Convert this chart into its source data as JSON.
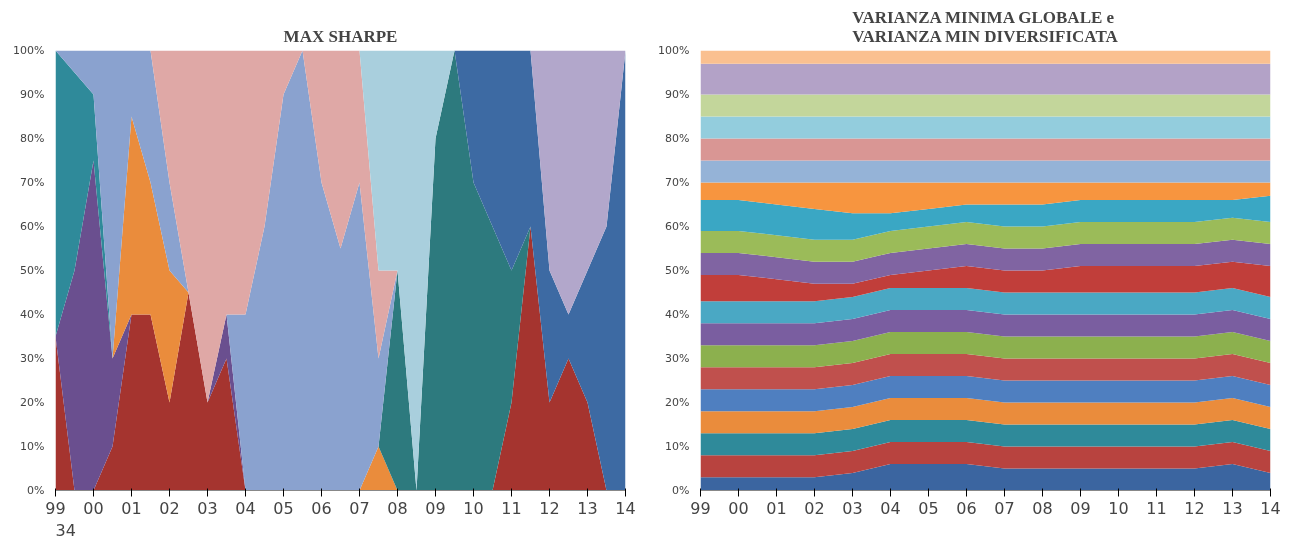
{
  "chart_data": [
    {
      "type": "area",
      "stacked": true,
      "title": "MAX SHARPE",
      "annotations": [
        "34"
      ],
      "x": [
        1999.0,
        1999.5,
        2000.0,
        2000.5,
        2001.0,
        2001.5,
        2002.0,
        2002.5,
        2003.0,
        2003.5,
        2004.0,
        2004.5,
        2005.0,
        2005.5,
        2006.0,
        2006.5,
        2007.0,
        2007.5,
        2008.0,
        2008.5,
        2009.0,
        2009.5,
        2010.0,
        2010.5,
        2011.0,
        2011.5,
        2012.0,
        2012.5,
        2013.0,
        2013.5,
        2014.0
      ],
      "xlim": [
        1999,
        2014
      ],
      "xticks": [
        {
          "value": 1999,
          "label": "99"
        },
        {
          "value": 2000,
          "label": "00"
        },
        {
          "value": 2001,
          "label": "01"
        },
        {
          "value": 2002,
          "label": "02"
        },
        {
          "value": 2003,
          "label": "03"
        },
        {
          "value": 2004,
          "label": "04"
        },
        {
          "value": 2005,
          "label": "05"
        },
        {
          "value": 2006,
          "label": "06"
        },
        {
          "value": 2007,
          "label": "07"
        },
        {
          "value": 2008,
          "label": "08"
        },
        {
          "value": 2009,
          "label": "09"
        },
        {
          "value": 2010,
          "label": "10"
        },
        {
          "value": 2011,
          "label": "11"
        },
        {
          "value": 2012,
          "label": "12"
        },
        {
          "value": 2013,
          "label": "13"
        },
        {
          "value": 2014,
          "label": "14"
        }
      ],
      "ylim": [
        0,
        100
      ],
      "yticks": [
        {
          "value": 0,
          "label": "0%"
        },
        {
          "value": 10,
          "label": "10%"
        },
        {
          "value": 20,
          "label": "20%"
        },
        {
          "value": 30,
          "label": "30%"
        },
        {
          "value": 40,
          "label": "40%"
        },
        {
          "value": 50,
          "label": "50%"
        },
        {
          "value": 60,
          "label": "60%"
        },
        {
          "value": 70,
          "label": "70%"
        },
        {
          "value": 80,
          "label": "80%"
        },
        {
          "value": 90,
          "label": "90%"
        },
        {
          "value": 100,
          "label": "100%"
        }
      ],
      "grid": false,
      "series": [
        {
          "color": "#a5342f",
          "values": [
            35,
            0,
            0,
            10,
            40,
            40,
            20,
            45,
            20,
            30,
            0,
            null,
            null,
            null,
            null,
            null,
            null,
            null,
            null,
            null,
            null,
            null,
            null,
            0,
            20,
            60,
            20,
            30,
            20,
            0,
            null
          ]
        },
        {
          "color": "#6a4f8f",
          "values": [
            0,
            50,
            75,
            20,
            0,
            null,
            null,
            null,
            0,
            10,
            0,
            null,
            null,
            null,
            null,
            null,
            null,
            null,
            null,
            null,
            null,
            null,
            null,
            null,
            null,
            null,
            null,
            null,
            null,
            null,
            null
          ]
        },
        {
          "color": "#2f8a9a",
          "values": [
            65,
            45,
            15,
            0,
            null,
            null,
            null,
            null,
            null,
            null,
            null,
            null,
            null,
            null,
            null,
            null,
            null,
            null,
            null,
            null,
            null,
            null,
            null,
            null,
            null,
            null,
            null,
            null,
            null,
            null,
            null
          ]
        },
        {
          "color": "#ea8c3c",
          "values": [
            null,
            null,
            null,
            0,
            45,
            30,
            30,
            0,
            null,
            null,
            null,
            null,
            null,
            null,
            null,
            null,
            0,
            10,
            0,
            null,
            null,
            null,
            null,
            null,
            null,
            null,
            null,
            null,
            null,
            null,
            null
          ]
        },
        {
          "color": "#2d7a7e",
          "values": [
            null,
            null,
            null,
            null,
            null,
            null,
            null,
            null,
            null,
            null,
            null,
            null,
            null,
            null,
            null,
            null,
            null,
            0,
            50,
            0,
            80,
            100,
            70,
            60,
            30,
            0,
            null,
            null,
            null,
            null,
            null
          ]
        },
        {
          "color": "#3d6aa3",
          "values": [
            null,
            null,
            null,
            null,
            null,
            null,
            null,
            null,
            null,
            null,
            null,
            null,
            null,
            null,
            null,
            null,
            null,
            null,
            null,
            null,
            null,
            0,
            30,
            40,
            50,
            40,
            30,
            10,
            30,
            60,
            100
          ]
        },
        {
          "color": "#8aa2cf",
          "values": [
            0,
            5,
            10,
            70,
            15,
            30,
            20,
            0,
            null,
            0,
            40,
            60,
            90,
            100,
            70,
            55,
            70,
            20,
            0,
            null,
            null,
            null,
            null,
            null,
            null,
            null,
            null,
            null,
            null,
            null,
            null
          ]
        },
        {
          "color": "#dfa8a6",
          "values": [
            null,
            null,
            null,
            null,
            null,
            0,
            30,
            55,
            80,
            60,
            60,
            40,
            10,
            0,
            30,
            45,
            30,
            20,
            0,
            null,
            null,
            null,
            null,
            null,
            null,
            null,
            null,
            null,
            null,
            null,
            null
          ]
        },
        {
          "color": "#a9cfdd",
          "values": [
            null,
            null,
            null,
            null,
            null,
            null,
            null,
            null,
            null,
            null,
            null,
            null,
            null,
            null,
            null,
            null,
            0,
            50,
            50,
            100,
            20,
            0,
            null,
            null,
            null,
            null,
            null,
            null,
            null,
            null,
            null
          ]
        },
        {
          "color": "#b2a7cb",
          "values": [
            null,
            null,
            null,
            null,
            null,
            null,
            null,
            null,
            null,
            null,
            null,
            null,
            null,
            null,
            null,
            null,
            null,
            null,
            null,
            null,
            null,
            null,
            null,
            null,
            null,
            0,
            50,
            60,
            50,
            40,
            0
          ]
        }
      ]
    },
    {
      "type": "area",
      "stacked": true,
      "title": "VARIANZA MINIMA GLOBALE e\nVARIANZA MIN DIVERSIFICATA",
      "x": [
        1999,
        2000,
        2001,
        2002,
        2003,
        2004,
        2005,
        2006,
        2007,
        2008,
        2009,
        2010,
        2011,
        2012,
        2013,
        2014
      ],
      "xlim": [
        1999,
        2014
      ],
      "xticks": [
        {
          "value": 1999,
          "label": "99"
        },
        {
          "value": 2000,
          "label": "00"
        },
        {
          "value": 2001,
          "label": "01"
        },
        {
          "value": 2002,
          "label": "02"
        },
        {
          "value": 2003,
          "label": "03"
        },
        {
          "value": 2004,
          "label": "04"
        },
        {
          "value": 2005,
          "label": "05"
        },
        {
          "value": 2006,
          "label": "06"
        },
        {
          "value": 2007,
          "label": "07"
        },
        {
          "value": 2008,
          "label": "08"
        },
        {
          "value": 2009,
          "label": "09"
        },
        {
          "value": 2010,
          "label": "10"
        },
        {
          "value": 2011,
          "label": "11"
        },
        {
          "value": 2012,
          "label": "12"
        },
        {
          "value": 2013,
          "label": "13"
        },
        {
          "value": 2014,
          "label": "14"
        }
      ],
      "ylim": [
        0,
        100
      ],
      "yticks": [
        {
          "value": 0,
          "label": "0%"
        },
        {
          "value": 10,
          "label": "10%"
        },
        {
          "value": 20,
          "label": "20%"
        },
        {
          "value": 30,
          "label": "30%"
        },
        {
          "value": 40,
          "label": "40%"
        },
        {
          "value": 50,
          "label": "50%"
        },
        {
          "value": 60,
          "label": "60%"
        },
        {
          "value": 70,
          "label": "70%"
        },
        {
          "value": 80,
          "label": "80%"
        },
        {
          "value": 90,
          "label": "90%"
        },
        {
          "value": 100,
          "label": "100%"
        }
      ],
      "grid": false,
      "series": [
        {
          "color": "#3b65a0",
          "values": [
            3,
            3,
            3,
            3,
            4,
            6,
            6,
            6,
            5,
            5,
            5,
            5,
            5,
            5,
            6,
            4
          ]
        },
        {
          "color": "#b8433f",
          "values": [
            5,
            5,
            5,
            5,
            5,
            5,
            5,
            5,
            5,
            5,
            5,
            5,
            5,
            5,
            5,
            5
          ]
        },
        {
          "color": "#2f8a9a",
          "values": [
            5,
            5,
            5,
            5,
            5,
            5,
            5,
            5,
            5,
            5,
            5,
            5,
            5,
            5,
            5,
            5
          ]
        },
        {
          "color": "#ea8c3c",
          "values": [
            5,
            5,
            5,
            5,
            5,
            5,
            5,
            5,
            5,
            5,
            5,
            5,
            5,
            5,
            5,
            5
          ]
        },
        {
          "color": "#4f7fc0",
          "values": [
            5,
            5,
            5,
            5,
            5,
            5,
            5,
            5,
            5,
            5,
            5,
            5,
            5,
            5,
            5,
            5
          ]
        },
        {
          "color": "#c0504d",
          "values": [
            5,
            5,
            5,
            5,
            5,
            5,
            5,
            5,
            5,
            5,
            5,
            5,
            5,
            5,
            5,
            5
          ]
        },
        {
          "color": "#8cb04e",
          "values": [
            5,
            5,
            5,
            5,
            5,
            5,
            5,
            5,
            5,
            5,
            5,
            5,
            5,
            5,
            5,
            5
          ]
        },
        {
          "color": "#7a5ea0",
          "values": [
            5,
            5,
            5,
            5,
            5,
            5,
            5,
            5,
            5,
            5,
            5,
            5,
            5,
            5,
            5,
            5
          ]
        },
        {
          "color": "#4aa8c4",
          "values": [
            5,
            5,
            5,
            5,
            5,
            5,
            5,
            5,
            5,
            5,
            5,
            5,
            5,
            5,
            5,
            5
          ]
        },
        {
          "color": "#c13e3a",
          "values": [
            6,
            6,
            5,
            4,
            3,
            3,
            4,
            5,
            5,
            5,
            6,
            6,
            6,
            6,
            6,
            7
          ]
        },
        {
          "color": "#8064a2",
          "values": [
            5,
            5,
            5,
            5,
            5,
            5,
            5,
            5,
            5,
            5,
            5,
            5,
            5,
            5,
            5,
            5
          ]
        },
        {
          "color": "#9bbb59",
          "values": [
            5,
            5,
            5,
            5,
            5,
            5,
            5,
            5,
            5,
            5,
            5,
            5,
            5,
            5,
            5,
            5
          ]
        },
        {
          "color": "#3aa7c4",
          "values": [
            7,
            7,
            7,
            7,
            6,
            4,
            4,
            4,
            5,
            5,
            5,
            5,
            5,
            5,
            4,
            6
          ]
        },
        {
          "color": "#f7953f",
          "values": [
            4,
            4,
            5,
            6,
            7,
            7,
            6,
            5,
            5,
            5,
            4,
            4,
            4,
            4,
            4,
            3
          ]
        },
        {
          "color": "#95b3d7",
          "values": [
            5,
            5,
            5,
            5,
            5,
            5,
            5,
            5,
            5,
            5,
            5,
            5,
            5,
            5,
            5,
            5
          ]
        },
        {
          "color": "#d99694",
          "values": [
            5,
            5,
            5,
            5,
            5,
            5,
            5,
            5,
            5,
            5,
            5,
            5,
            5,
            5,
            5,
            5
          ]
        },
        {
          "color": "#93cddd",
          "values": [
            5,
            5,
            5,
            5,
            5,
            5,
            5,
            5,
            5,
            5,
            5,
            5,
            5,
            5,
            5,
            5
          ]
        },
        {
          "color": "#c3d69b",
          "values": [
            5,
            5,
            5,
            5,
            5,
            5,
            5,
            5,
            5,
            5,
            5,
            5,
            5,
            5,
            5,
            5
          ]
        },
        {
          "color": "#b3a2c7",
          "values": [
            7,
            7,
            7,
            7,
            7,
            7,
            7,
            7,
            7,
            7,
            7,
            7,
            7,
            7,
            7,
            7
          ]
        },
        {
          "color": "#fac090",
          "values": [
            3,
            3,
            3,
            3,
            3,
            3,
            3,
            3,
            3,
            3,
            3,
            3,
            3,
            3,
            3,
            3
          ]
        }
      ]
    }
  ]
}
